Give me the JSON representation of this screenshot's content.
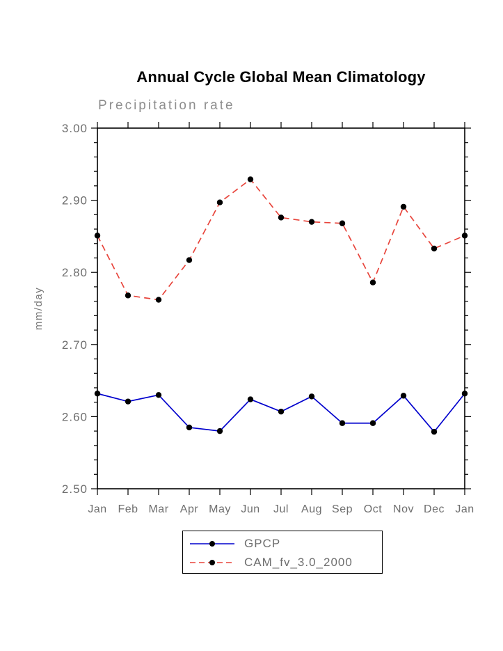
{
  "chart_data": {
    "type": "line",
    "title": "Annual Cycle Global Mean Climatology",
    "subtitle": "Precipitation rate",
    "ylabel": "mm/day",
    "x_categories": [
      "Jan",
      "Feb",
      "Mar",
      "Apr",
      "May",
      "Jun",
      "Jul",
      "Aug",
      "Sep",
      "Oct",
      "Nov",
      "Dec",
      "Jan"
    ],
    "ylim": [
      2.5,
      3.0
    ],
    "ytick_step": 0.1,
    "ytick_labels": [
      "2.50",
      "2.60",
      "2.70",
      "2.80",
      "2.90",
      "3.00"
    ],
    "grid": false,
    "legend_position": "bottom",
    "marker_color": "#000000",
    "frame_color": "#000000",
    "label_color": "#6e6e6e",
    "series": [
      {
        "name": "GPCP",
        "color": "#0000cd",
        "style": "solid",
        "values": [
          2.632,
          2.621,
          2.63,
          2.585,
          2.58,
          2.624,
          2.607,
          2.628,
          2.591,
          2.591,
          2.629,
          2.579,
          2.632
        ]
      },
      {
        "name": "CAM_fv_3.0_2000",
        "color": "#e8453c",
        "style": "dashed",
        "values": [
          2.851,
          2.768,
          2.762,
          2.817,
          2.897,
          2.929,
          2.876,
          2.87,
          2.868,
          2.786,
          2.891,
          2.833,
          2.851
        ]
      }
    ]
  }
}
